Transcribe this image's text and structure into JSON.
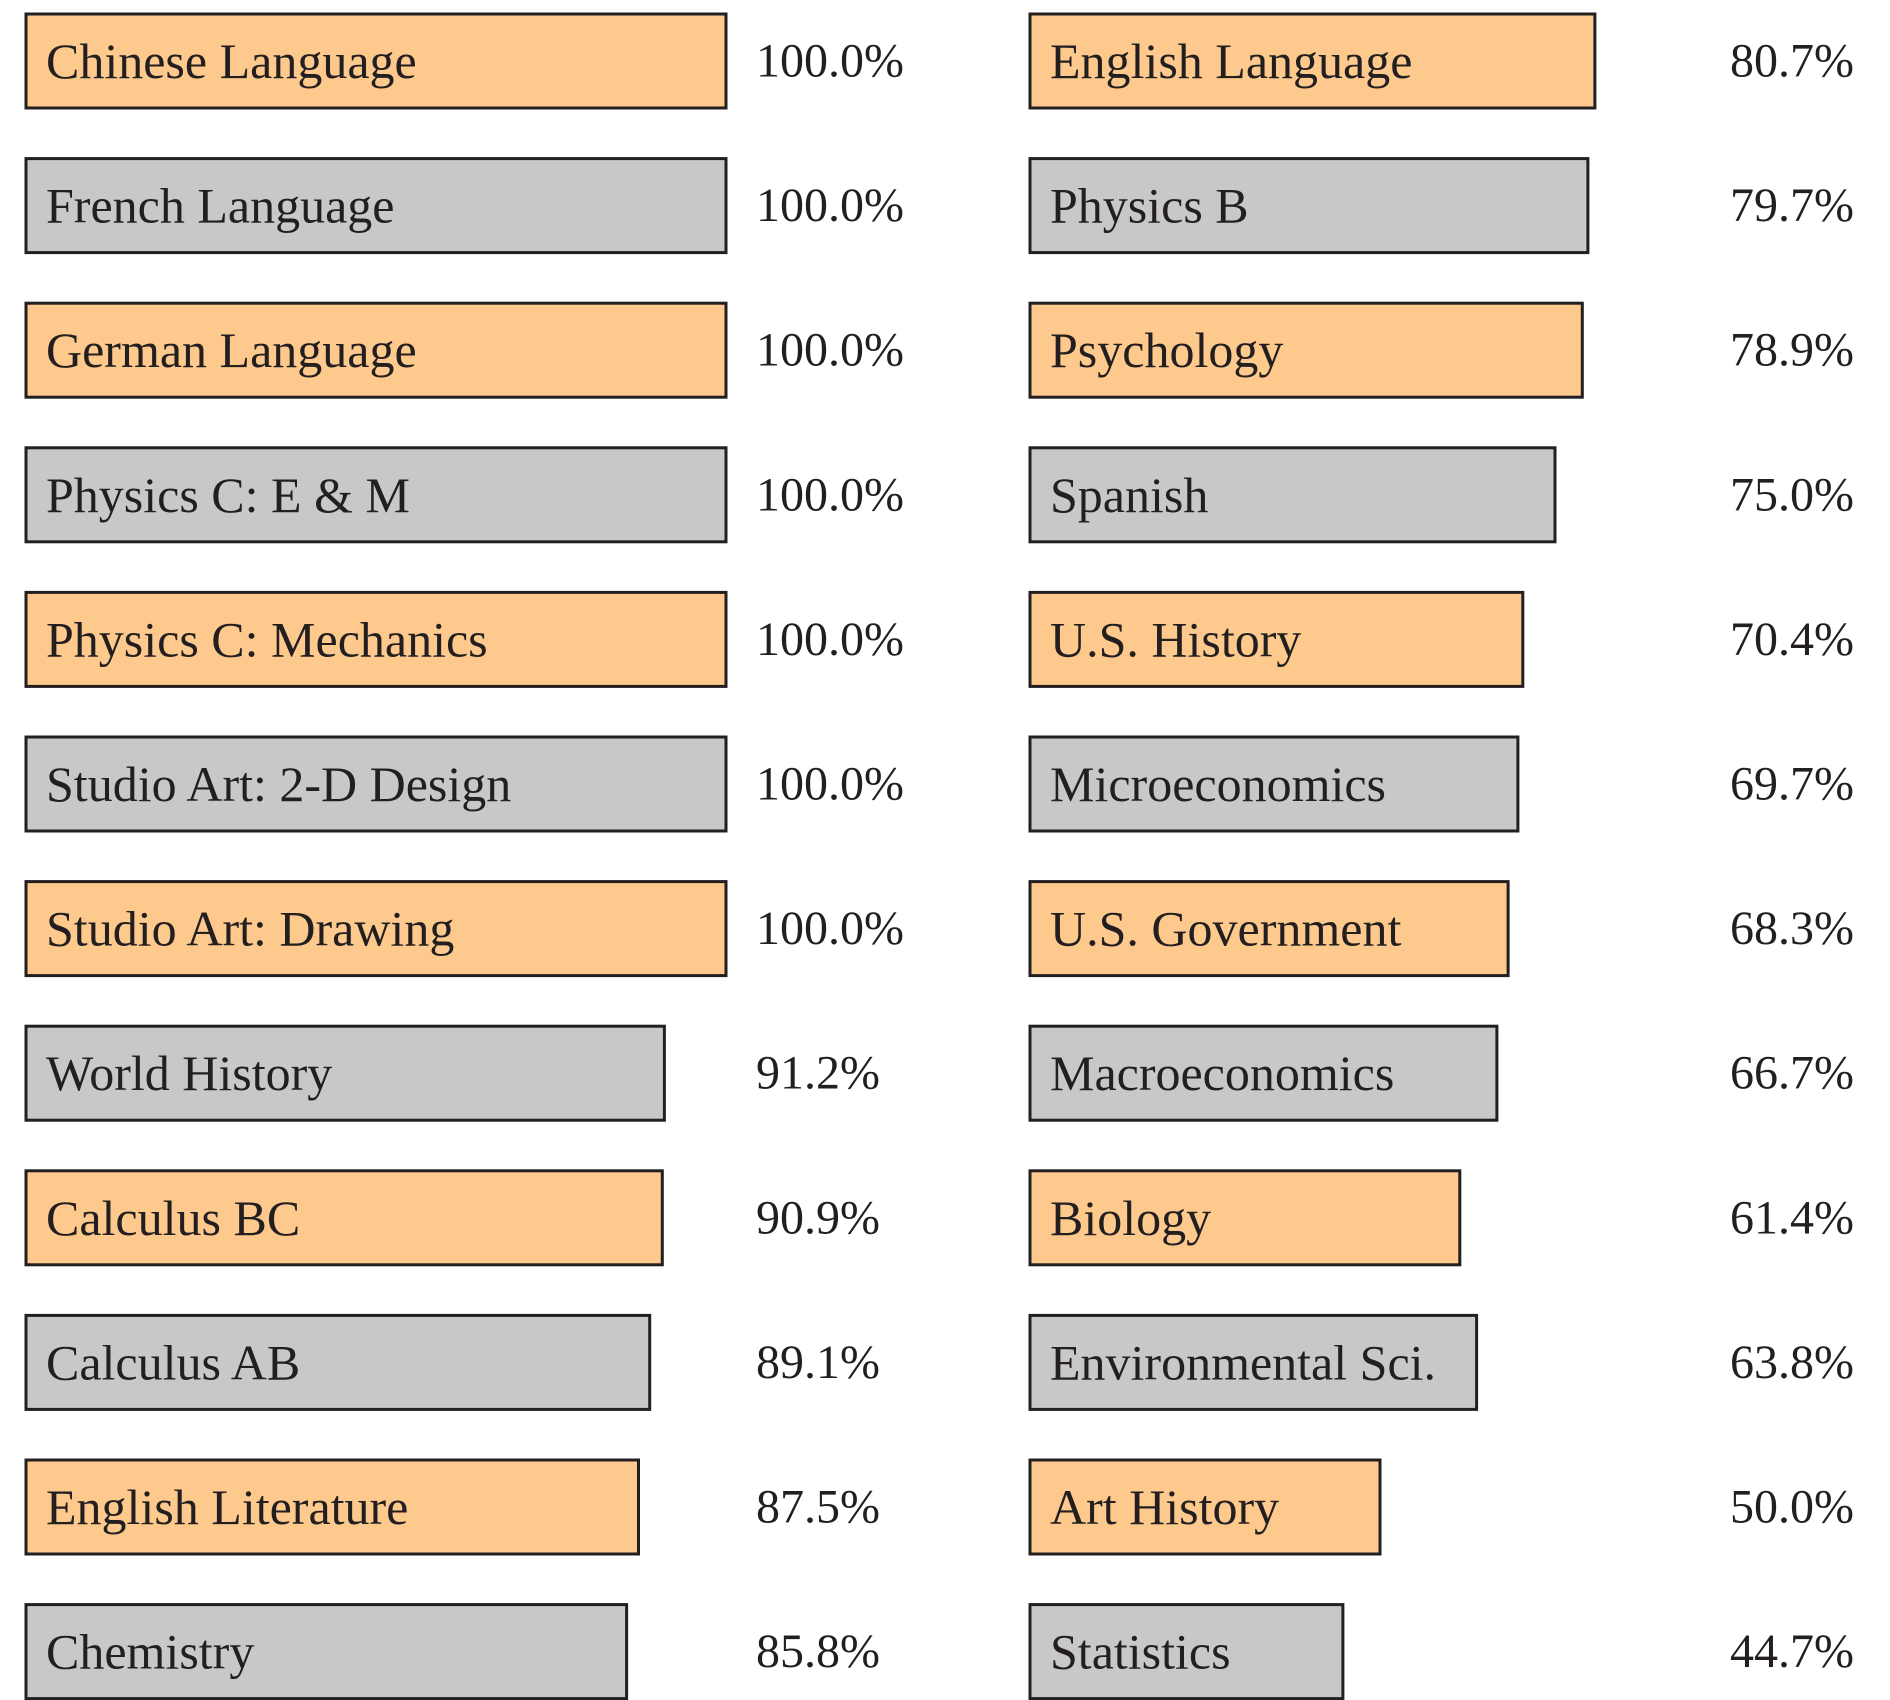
{
  "chart_data": {
    "type": "bar",
    "orientation": "horizontal",
    "layout": "two-column",
    "xlim": [
      0,
      100
    ],
    "grid": false,
    "colors": {
      "odd_row_fill": "#fdc98c",
      "even_row_fill": "#c8c8ca",
      "stroke": "#231f20",
      "text": "#231f20"
    },
    "columns": [
      {
        "bars": [
          {
            "label": "Chinese Language",
            "value": 100.0,
            "value_label": "100.0%"
          },
          {
            "label": "French Language",
            "value": 100.0,
            "value_label": "100.0%"
          },
          {
            "label": "German Language",
            "value": 100.0,
            "value_label": "100.0%"
          },
          {
            "label": "Physics C: E & M",
            "value": 100.0,
            "value_label": "100.0%"
          },
          {
            "label": "Physics C: Mechanics",
            "value": 100.0,
            "value_label": "100.0%"
          },
          {
            "label": "Studio Art: 2-D Design",
            "value": 100.0,
            "value_label": "100.0%"
          },
          {
            "label": "Studio Art: Drawing",
            "value": 100.0,
            "value_label": "100.0%"
          },
          {
            "label": "World History",
            "value": 91.2,
            "value_label": "91.2%"
          },
          {
            "label": "Calculus BC",
            "value": 90.9,
            "value_label": "90.9%"
          },
          {
            "label": "Calculus AB",
            "value": 89.1,
            "value_label": "89.1%"
          },
          {
            "label": "English Literature",
            "value": 87.5,
            "value_label": "87.5%"
          },
          {
            "label": "Chemistry",
            "value": 85.8,
            "value_label": "85.8%"
          }
        ]
      },
      {
        "bars": [
          {
            "label": "English Language",
            "value": 80.7,
            "value_label": "80.7%"
          },
          {
            "label": "Physics B",
            "value": 79.7,
            "value_label": "79.7%"
          },
          {
            "label": "Psychology",
            "value": 78.9,
            "value_label": "78.9%"
          },
          {
            "label": "Spanish",
            "value": 75.0,
            "value_label": "75.0%"
          },
          {
            "label": "U.S. History",
            "value": 70.4,
            "value_label": "70.4%"
          },
          {
            "label": "Microeconomics",
            "value": 69.7,
            "value_label": "69.7%"
          },
          {
            "label": "U.S. Government",
            "value": 68.3,
            "value_label": "68.3%"
          },
          {
            "label": "Macroeconomics",
            "value": 66.7,
            "value_label": "66.7%"
          },
          {
            "label": "Biology",
            "value": 61.4,
            "value_label": "61.4%"
          },
          {
            "label": "Environmental Sci.",
            "value": 63.8,
            "value_label": "63.8%"
          },
          {
            "label": "Art History",
            "value": 50.0,
            "value_label": "50.0%"
          },
          {
            "label": "Statistics",
            "value": 44.7,
            "value_label": "44.7%"
          }
        ]
      }
    ]
  }
}
